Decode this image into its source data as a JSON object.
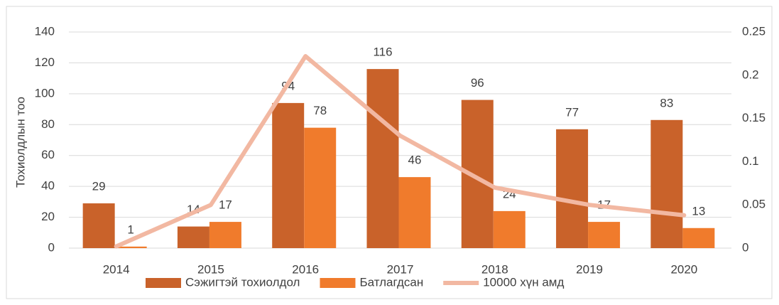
{
  "chart_data": {
    "type": "bar",
    "categories": [
      "2014",
      "2015",
      "2016",
      "2017",
      "2018",
      "2019",
      "2020"
    ],
    "series": [
      {
        "name": "Сэжигтэй тохиолдол",
        "color": "#c9622a",
        "values": [
          29,
          14,
          94,
          116,
          96,
          77,
          83
        ]
      },
      {
        "name": "Батлагдсан",
        "color": "#f07b2c",
        "values": [
          1,
          17,
          78,
          46,
          24,
          17,
          13
        ]
      },
      {
        "name": "10000 хүн амд",
        "color": "#f2b8a2",
        "type": "line",
        "axis": "y2",
        "values": [
          0.002,
          0.05,
          0.222,
          0.13,
          0.07,
          0.05,
          0.038
        ]
      }
    ],
    "y_label": "Тохиолдлын тоо",
    "ylim": [
      0,
      140
    ],
    "yticks": [
      0,
      20,
      40,
      60,
      80,
      100,
      120,
      140
    ],
    "y2lim": [
      0,
      0.25
    ],
    "y2ticks": [
      0,
      0.05,
      0.1,
      0.15,
      0.2,
      0.25
    ],
    "grid": true,
    "legend": "bottom"
  }
}
